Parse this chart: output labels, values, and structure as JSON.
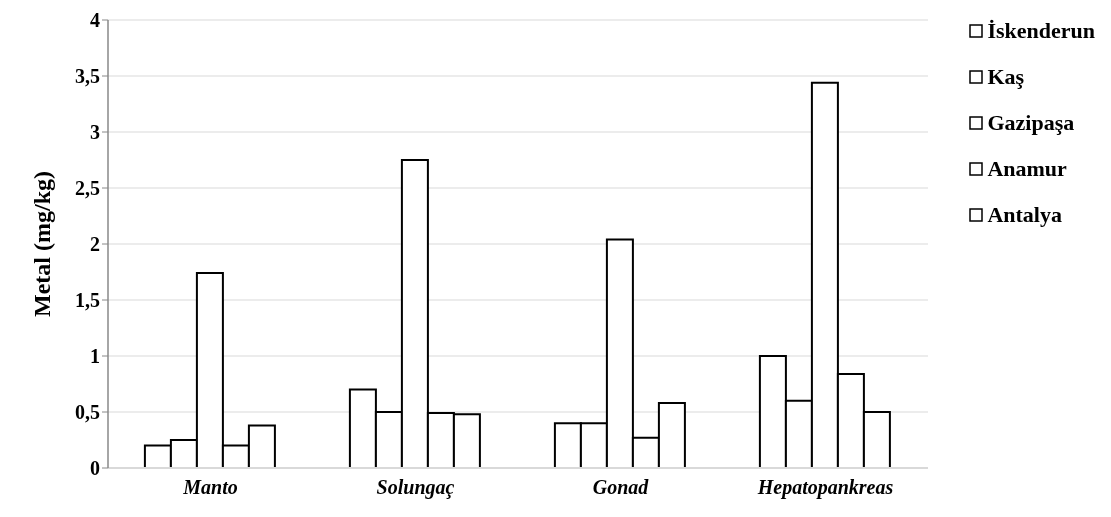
{
  "chart_data": {
    "type": "bar",
    "ylabel": "Metal (mg/kg)",
    "categories": [
      "Manto",
      "Solungaç",
      "Gonad",
      "Hepatopankreas"
    ],
    "series": [
      {
        "name": "İskenderun",
        "color": "#ffffff",
        "values": [
          0.2,
          0.7,
          0.4,
          1.0
        ]
      },
      {
        "name": "Kaş",
        "color": "#ffffff",
        "values": [
          0.25,
          0.5,
          0.4,
          0.6
        ]
      },
      {
        "name": "Gazipaşa",
        "color": "#ffffff",
        "values": [
          1.74,
          2.75,
          2.04,
          3.44
        ]
      },
      {
        "name": "Anamur",
        "color": "#ffffff",
        "values": [
          0.2,
          0.49,
          0.27,
          0.84
        ]
      },
      {
        "name": "Antalya",
        "color": "#ffffff",
        "values": [
          0.38,
          0.48,
          0.58,
          0.5
        ]
      }
    ],
    "ylim": [
      0,
      4
    ],
    "yticks": [
      0,
      {
        "value": 0.5,
        "label": "0,5"
      },
      1,
      {
        "value": 1.5,
        "label": "1,5"
      },
      2,
      {
        "value": 2.5,
        "label": "2,5"
      },
      3,
      {
        "value": 3.5,
        "label": "3,5"
      },
      4
    ],
    "grid": "y",
    "legend": "top right"
  }
}
